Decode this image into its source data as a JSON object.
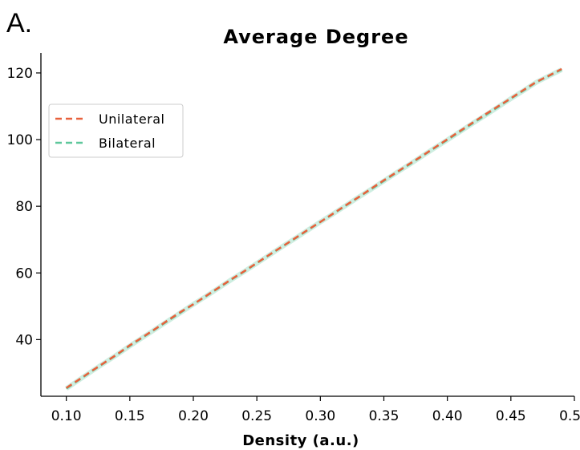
{
  "panel_label": "A.",
  "chart_data": {
    "type": "line",
    "title": "Average Degree",
    "xlabel": "Density (a.u.)",
    "ylabel": "",
    "xlim": [
      0.08,
      0.5
    ],
    "ylim": [
      23,
      126
    ],
    "xticks": [
      0.1,
      0.15,
      0.2,
      0.25,
      0.3,
      0.35,
      0.4,
      0.45,
      0.5
    ],
    "xtick_labels": [
      "0.10",
      "0.15",
      "0.20",
      "0.25",
      "0.30",
      "0.35",
      "0.40",
      "0.45",
      "0.50"
    ],
    "yticks": [
      40,
      60,
      80,
      100,
      120
    ],
    "ytick_labels": [
      "40",
      "60",
      "80",
      "100",
      "120"
    ],
    "grid": false,
    "legend_position": "upper-left",
    "x": [
      0.1,
      0.11,
      0.12,
      0.13,
      0.14,
      0.15,
      0.16,
      0.17,
      0.18,
      0.19,
      0.2,
      0.21,
      0.22,
      0.23,
      0.24,
      0.25,
      0.26,
      0.27,
      0.28,
      0.29,
      0.3,
      0.31,
      0.32,
      0.33,
      0.34,
      0.35,
      0.36,
      0.37,
      0.38,
      0.39,
      0.4,
      0.41,
      0.42,
      0.43,
      0.44,
      0.45,
      0.46,
      0.47,
      0.48,
      0.49
    ],
    "series": [
      {
        "name": "Unilateral",
        "color": "#e8613c",
        "values": [
          25.5,
          28.0,
          30.6,
          33.1,
          35.6,
          38.3,
          40.7,
          43.2,
          45.8,
          48.3,
          50.6,
          53.1,
          55.6,
          58.1,
          60.5,
          63.0,
          65.5,
          67.9,
          70.4,
          72.9,
          75.3,
          77.8,
          80.3,
          82.7,
          85.3,
          87.8,
          90.2,
          92.7,
          95.1,
          97.6,
          100.1,
          102.6,
          105.1,
          107.6,
          110.0,
          112.4,
          114.9,
          117.3,
          119.2,
          121.2
        ]
      },
      {
        "name": "Bilateral",
        "color": "#5ec79c",
        "values": [
          25.3,
          27.9,
          30.5,
          33.0,
          35.5,
          38.1,
          40.6,
          43.1,
          45.6,
          48.1,
          50.6,
          53.0,
          55.5,
          58.0,
          60.4,
          62.9,
          65.4,
          67.9,
          70.3,
          72.8,
          75.3,
          77.7,
          80.2,
          82.7,
          85.1,
          87.6,
          90.1,
          92.5,
          95.0,
          97.5,
          99.9,
          102.4,
          104.9,
          107.3,
          109.8,
          112.3,
          114.7,
          117.2,
          119.1,
          121.0
        ]
      }
    ]
  }
}
